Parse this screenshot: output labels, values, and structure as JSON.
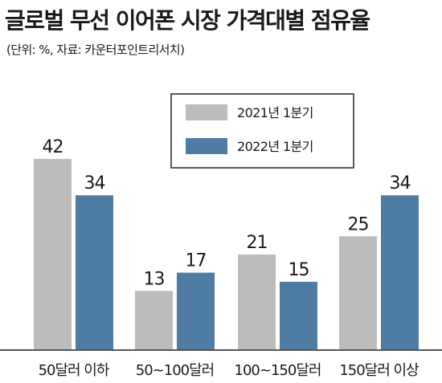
{
  "title": "글로벌 무선 이어폰 시장 가격대별 점유율",
  "subtitle": "(단위: %, 자료: 카운터포인트리서치)",
  "colors": {
    "series_2021": "#bcbcbc",
    "series_2022": "#4f7ca3",
    "axis": "#555555",
    "legend_border": "#222222"
  },
  "chart_data": {
    "type": "bar",
    "title": "글로벌 무선 이어폰 시장 가격대별 점유율",
    "unit": "%",
    "categories": [
      "50달러 이하",
      "50~100달러",
      "100~150달러",
      "150달러 이상"
    ],
    "series": [
      {
        "name": "2021년 1분기",
        "values": [
          42,
          13,
          21,
          25
        ]
      },
      {
        "name": "2022년 1분기",
        "values": [
          34,
          17,
          15,
          34
        ]
      }
    ],
    "ylim": [
      0,
      50
    ],
    "grid": false,
    "legend_position": "top-right",
    "data_labels": true
  }
}
